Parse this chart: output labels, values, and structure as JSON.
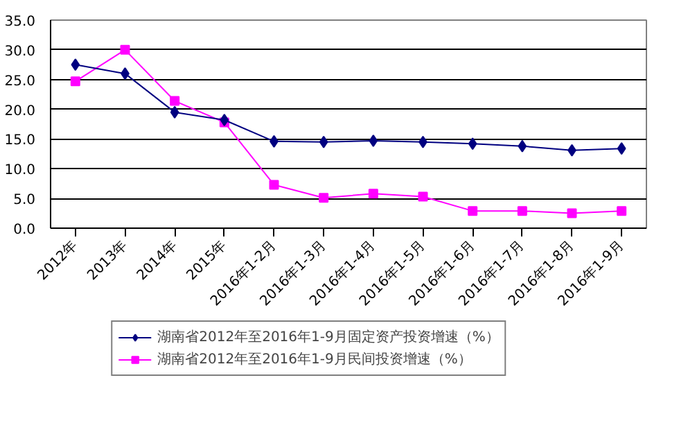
{
  "chart_data": {
    "type": "line",
    "categories": [
      "2012年",
      "2013年",
      "2014年",
      "2015年",
      "2016年1-2月",
      "2016年1-3月",
      "2016年1-4月",
      "2016年1-5月",
      "2016年1-6月",
      "2016年1-7月",
      "2016年1-8月",
      "2016年1-9月"
    ],
    "series": [
      {
        "name": "湖南省2012年至2016年1-9月固定资产投资增速（%）",
        "color": "#000080",
        "marker": "diamond",
        "values": [
          27.5,
          26.0,
          19.5,
          18.2,
          14.6,
          14.5,
          14.7,
          14.5,
          14.2,
          13.8,
          13.1,
          13.4
        ]
      },
      {
        "name": "湖南省2012年至2016年1-9月民间投资增速（%）",
        "color": "#ff00ff",
        "marker": "square",
        "values": [
          24.7,
          30.0,
          21.4,
          17.8,
          7.3,
          5.1,
          5.8,
          5.3,
          2.9,
          2.9,
          2.5,
          2.9
        ]
      }
    ],
    "ylim": [
      0,
      35
    ],
    "yticks": [
      {
        "value": 0,
        "label": "0.0"
      },
      {
        "value": 5,
        "label": "5.0"
      },
      {
        "value": 10,
        "label": "10.0"
      },
      {
        "value": 15,
        "label": "15.0"
      },
      {
        "value": 20,
        "label": "20.0"
      },
      {
        "value": 25,
        "label": "25.0"
      },
      {
        "value": 30,
        "label": "30.0"
      },
      {
        "value": 35,
        "label": "35.0"
      }
    ],
    "grid": "y",
    "legend": "bottom",
    "line_style": "solid"
  }
}
